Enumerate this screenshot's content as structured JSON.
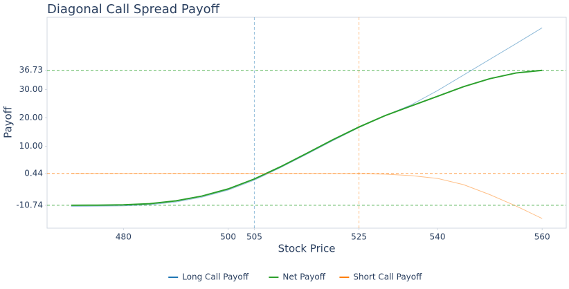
{
  "chart_data": {
    "type": "line",
    "title": "Diagonal Call Spread Payoff",
    "x_label": "Stock Price",
    "y_label": "Payoff",
    "x": [
      470,
      475,
      480,
      485,
      490,
      495,
      500,
      505,
      510,
      515,
      520,
      525,
      530,
      535,
      540,
      545,
      550,
      555,
      560
    ],
    "series": [
      {
        "name": "Long Call Payoff",
        "color": "#1f77b4",
        "opacity": 0.5,
        "width": 1,
        "values": [
          -11.1,
          -11.05,
          -10.95,
          -10.55,
          -9.6,
          -7.9,
          -5.4,
          -1.9,
          2.5,
          7.2,
          12.0,
          16.6,
          20.8,
          24.6,
          29.6,
          35.1,
          40.6,
          46.1,
          51.7
        ]
      },
      {
        "name": "Net Payoff",
        "color": "#2ca02c",
        "opacity": 1,
        "width": 2,
        "values": [
          -10.74,
          -10.7,
          -10.6,
          -10.2,
          -9.2,
          -7.5,
          -5.0,
          -1.5,
          2.8,
          7.5,
          12.3,
          16.8,
          20.8,
          24.2,
          27.6,
          31.0,
          33.8,
          35.8,
          36.73
        ]
      },
      {
        "name": "Short Call Payoff",
        "color": "#ff7f0e",
        "opacity": 0.5,
        "width": 1,
        "values": [
          0.44,
          0.44,
          0.44,
          0.44,
          0.44,
          0.44,
          0.44,
          0.44,
          0.44,
          0.44,
          0.42,
          0.35,
          0.2,
          -0.3,
          -1.3,
          -3.5,
          -7.0,
          -11.0,
          -15.4
        ]
      }
    ],
    "hlines": [
      {
        "value": 36.73,
        "color": "#2ca02c"
      },
      {
        "value": 0.44,
        "color": "#ff7f0e"
      },
      {
        "value": -10.74,
        "color": "#2ca02c"
      }
    ],
    "vlines": [
      {
        "value": 505,
        "color": "#1f77b4"
      },
      {
        "value": 525,
        "color": "#ff7f0e"
      }
    ],
    "xlim": [
      465.4,
      564.6
    ],
    "ylim": [
      -18.8,
      55.4
    ],
    "xticks": [
      480,
      500,
      505,
      525,
      540,
      560
    ],
    "yticks": [
      -10.74,
      0.44,
      {
        "value": 10,
        "label": "10.00"
      },
      {
        "value": 20,
        "label": "20.00"
      },
      {
        "value": 30,
        "label": "30.00"
      },
      36.73
    ],
    "legend": "bottom"
  }
}
